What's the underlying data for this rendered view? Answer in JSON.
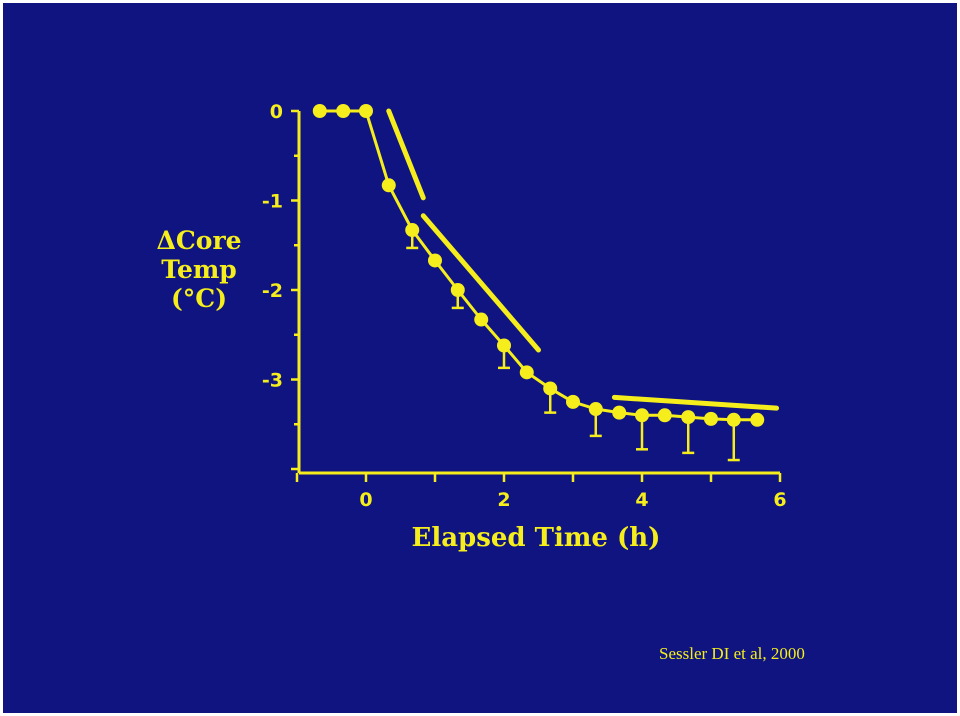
{
  "citation": "Sessler DI et al, 2000",
  "colors": {
    "background": "#0f1480",
    "foreground": "#f5ee1c"
  },
  "chart_data": {
    "type": "scatter",
    "title": "",
    "xlabel": "Elapsed Time (h)",
    "ylabel_lines": [
      "ΔCore",
      "Temp",
      "(°C)"
    ],
    "xlim": [
      -1,
      6
    ],
    "ylim": [
      -4,
      0
    ],
    "xticks": [
      0,
      2,
      4,
      6
    ],
    "yticks": [
      0,
      -1,
      -2,
      -3
    ],
    "grid": false,
    "legend": "none",
    "series": [
      {
        "name": "core temperature change",
        "points": [
          {
            "x": -0.67,
            "y": 0.0
          },
          {
            "x": -0.33,
            "y": 0.0
          },
          {
            "x": 0.0,
            "y": 0.0
          },
          {
            "x": 0.33,
            "y": -0.83
          },
          {
            "x": 0.67,
            "y": -1.33,
            "err": 0.2
          },
          {
            "x": 1.0,
            "y": -1.67
          },
          {
            "x": 1.33,
            "y": -2.0,
            "err": 0.2
          },
          {
            "x": 1.67,
            "y": -2.33
          },
          {
            "x": 2.0,
            "y": -2.62,
            "err": 0.25
          },
          {
            "x": 2.33,
            "y": -2.92
          },
          {
            "x": 2.67,
            "y": -3.1,
            "err": 0.27
          },
          {
            "x": 3.0,
            "y": -3.25
          },
          {
            "x": 3.33,
            "y": -3.33,
            "err": 0.3
          },
          {
            "x": 3.67,
            "y": -3.37
          },
          {
            "x": 4.0,
            "y": -3.4,
            "err": 0.38
          },
          {
            "x": 4.33,
            "y": -3.4
          },
          {
            "x": 4.67,
            "y": -3.42,
            "err": 0.4
          },
          {
            "x": 5.0,
            "y": -3.44
          },
          {
            "x": 5.33,
            "y": -3.45,
            "err": 0.45
          },
          {
            "x": 5.67,
            "y": -3.45
          }
        ]
      }
    ],
    "annotations": [
      {
        "name": "phase-1-trend-line",
        "x": [
          0.33,
          0.83
        ],
        "y": [
          0.0,
          -0.97
        ]
      },
      {
        "name": "phase-2-trend-line",
        "x": [
          0.83,
          2.5
        ],
        "y": [
          -1.17,
          -2.67
        ]
      },
      {
        "name": "phase-3-trend-line",
        "x": [
          3.6,
          5.95
        ],
        "y": [
          -3.2,
          -3.32
        ]
      }
    ]
  }
}
